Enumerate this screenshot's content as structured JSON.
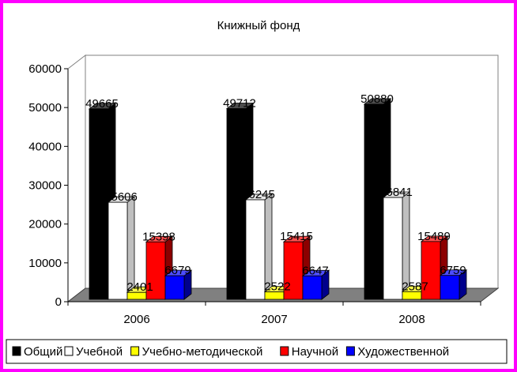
{
  "chart_data": {
    "type": "bar",
    "title": "Книжный фонд",
    "categories": [
      "2006",
      "2007",
      "2008"
    ],
    "series": [
      {
        "name": "Общий",
        "values": [
          49665,
          49712,
          50880
        ],
        "color": "#000000"
      },
      {
        "name": "Учебной",
        "values": [
          25606,
          26245,
          26841
        ],
        "color": "#ffffff"
      },
      {
        "name": "Учебно-методической",
        "values": [
          2401,
          2522,
          2587
        ],
        "color": "#ffff00"
      },
      {
        "name": "Научной",
        "values": [
          15398,
          15415,
          15489
        ],
        "color": "#ff0000"
      },
      {
        "name": "Художественной",
        "values": [
          6679,
          6647,
          6759
        ],
        "color": "#0000ff"
      }
    ],
    "ylim": [
      0,
      60000
    ],
    "yticks": [
      "0",
      "10000",
      "20000",
      "30000",
      "40000",
      "50000",
      "60000"
    ],
    "grid": false,
    "legend_position": "bottom",
    "three_d": true,
    "border_color": "#ff00ff"
  }
}
